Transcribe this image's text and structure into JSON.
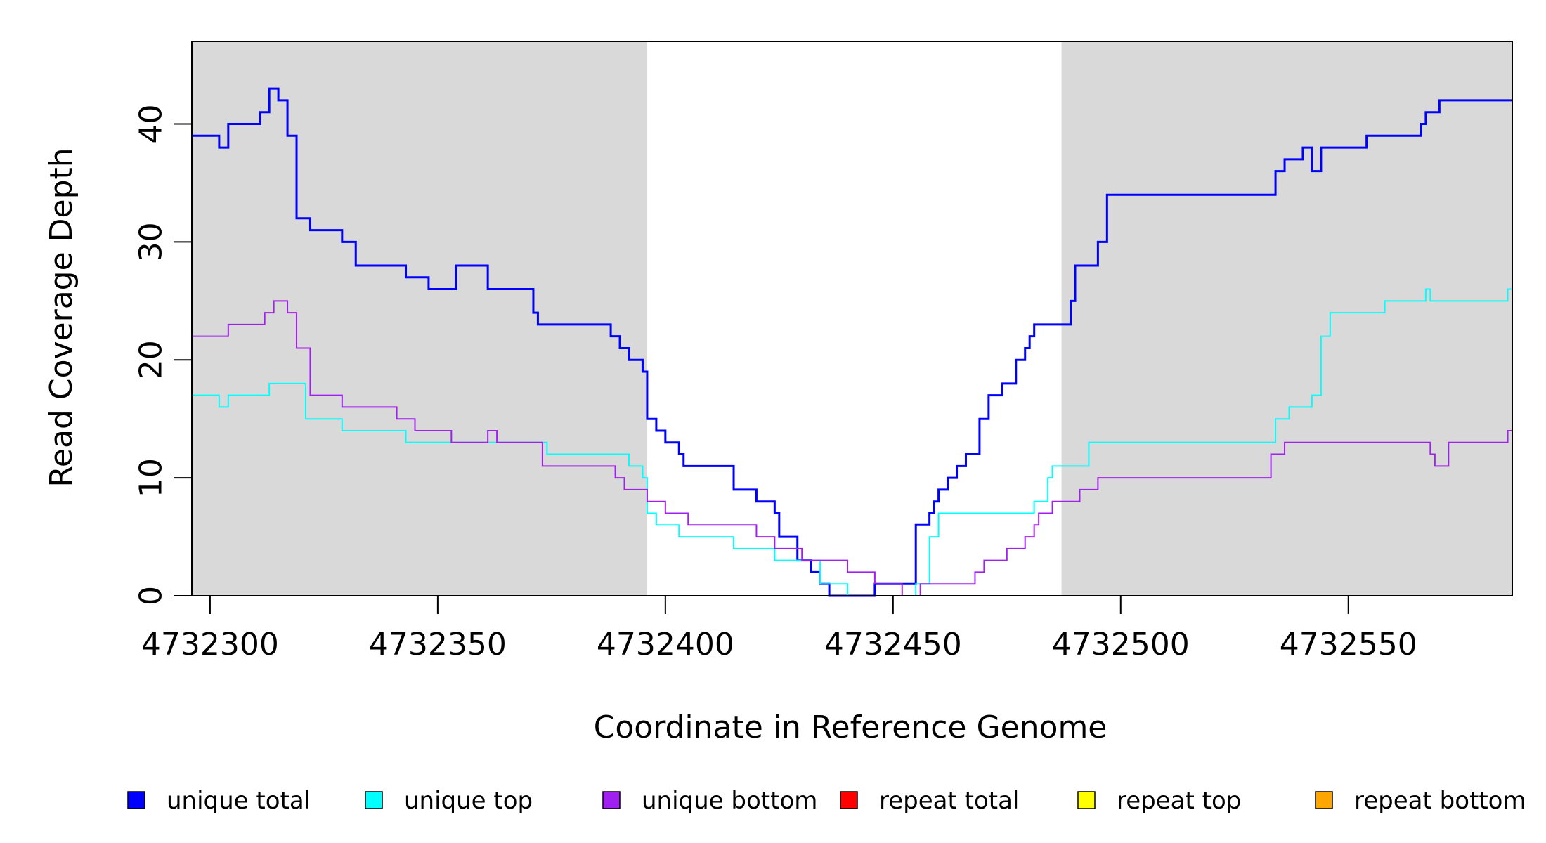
{
  "chart_data": {
    "type": "line",
    "xlabel": "Coordinate in Reference Genome",
    "ylabel": "Read Coverage Depth",
    "xlim": [
      4732296,
      4732586
    ],
    "ylim": [
      0,
      47
    ],
    "x_ticks": [
      4732300,
      4732350,
      4732400,
      4732450,
      4732500,
      4732550
    ],
    "x_tick_labels": [
      "4732300",
      "4732350",
      "4732400",
      "4732450",
      "4732500",
      "4732550"
    ],
    "y_ticks": [
      0,
      10,
      20,
      30,
      40
    ],
    "y_tick_labels": [
      "0",
      "10",
      "20",
      "30",
      "40"
    ],
    "grid": false,
    "line_style": "step",
    "shaded_regions": [
      {
        "x": [
          4732296,
          4732396
        ],
        "color": "#d9d9d9"
      },
      {
        "x": [
          4732487,
          4732586
        ],
        "color": "#d9d9d9"
      }
    ],
    "legend_position": "bottom",
    "series": [
      {
        "name": "unique total",
        "color": "#0000ff",
        "x": [
          4732296,
          4732302,
          4732304,
          4732311,
          4732313,
          4732315,
          4732317,
          4732319,
          4732322,
          4732329,
          4732332,
          4732343,
          4732348,
          4732354,
          4732361,
          4732363,
          4732371,
          4732372,
          4732388,
          4732390,
          4732392,
          4732395,
          4732396,
          4732398,
          4732400,
          4732403,
          4732404,
          4732415,
          4732420,
          4732424,
          4732425,
          4732429,
          4732432,
          4732434,
          4732436,
          4732441,
          4732446,
          4732455,
          4732458,
          4732459,
          4732460,
          4732462,
          4732464,
          4732466,
          4732469,
          4732471,
          4732474,
          4732477,
          4732479,
          4732480,
          4732481,
          4732489,
          4732490,
          4732495,
          4732497,
          4732534,
          4732536,
          4732540,
          4732542,
          4732544,
          4732554,
          4732566,
          4732567,
          4732570,
          4732571,
          4732584,
          4732585,
          4732586
        ],
        "y": [
          39,
          38,
          40,
          41,
          43,
          42,
          39,
          32,
          31,
          30,
          28,
          27,
          26,
          28,
          26,
          26,
          24,
          23,
          22,
          21,
          20,
          19,
          15,
          14,
          13,
          12,
          11,
          9,
          8,
          7,
          5,
          3,
          2,
          1,
          0,
          0,
          1,
          6,
          7,
          8,
          9,
          10,
          11,
          12,
          15,
          17,
          18,
          20,
          21,
          22,
          23,
          25,
          28,
          30,
          34,
          36,
          37,
          38,
          36,
          38,
          39,
          40,
          41,
          42,
          42,
          42,
          42,
          42
        ],
        "stroke_width": 3
      },
      {
        "name": "unique top",
        "color": "#00ffff",
        "x": [
          4732296,
          4732302,
          4732304,
          4732313,
          4732321,
          4732329,
          4732343,
          4732356,
          4732374,
          4732392,
          4732395,
          4732396,
          4732398,
          4732403,
          4732415,
          4732424,
          4732434,
          4732440,
          4732446,
          4732455,
          4732458,
          4732460,
          4732481,
          4732484,
          4732485,
          4732493,
          4732534,
          4732537,
          4732542,
          4732544,
          4732546,
          4732558,
          4732567,
          4732568,
          4732585,
          4732586
        ],
        "y": [
          17,
          16,
          17,
          18,
          15,
          14,
          13,
          13,
          12,
          11,
          10,
          7,
          6,
          5,
          4,
          3,
          1,
          0,
          0,
          1,
          5,
          7,
          8,
          10,
          11,
          13,
          15,
          16,
          17,
          22,
          24,
          25,
          26,
          25,
          26,
          27
        ],
        "stroke_width": 2
      },
      {
        "name": "unique bottom",
        "color": "#a020f0",
        "x": [
          4732296,
          4732304,
          4732312,
          4732314,
          4732317,
          4732319,
          4732322,
          4732329,
          4732341,
          4732345,
          4732353,
          4732361,
          4732363,
          4732373,
          4732389,
          4732391,
          4732396,
          4732400,
          4732405,
          4732420,
          4732424,
          4732430,
          4732440,
          4732446,
          4732452,
          4732456,
          4732468,
          4732470,
          4732475,
          4732479,
          4732481,
          4732482,
          4732485,
          4732491,
          4732495,
          4732497,
          4732533,
          4732536,
          4732568,
          4732569,
          4732572,
          4732585,
          4732586
        ],
        "y": [
          22,
          23,
          24,
          25,
          24,
          21,
          17,
          16,
          15,
          14,
          13,
          14,
          13,
          11,
          10,
          9,
          8,
          7,
          6,
          5,
          4,
          3,
          2,
          1,
          0,
          1,
          2,
          3,
          4,
          5,
          6,
          7,
          8,
          9,
          10,
          10,
          12,
          13,
          12,
          11,
          13,
          14,
          15
        ],
        "stroke_width": 2
      },
      {
        "name": "repeat total",
        "color": "#ff0000",
        "x": [
          4732296,
          4732586
        ],
        "y": [
          0,
          0
        ],
        "stroke_width": 2
      },
      {
        "name": "repeat top",
        "color": "#ffff00",
        "x": [
          4732296,
          4732586
        ],
        "y": [
          0,
          0
        ],
        "stroke_width": 2
      },
      {
        "name": "repeat bottom",
        "color": "#ffa500",
        "x": [
          4732296,
          4732586
        ],
        "y": [
          0,
          0
        ],
        "stroke_width": 2
      }
    ]
  }
}
